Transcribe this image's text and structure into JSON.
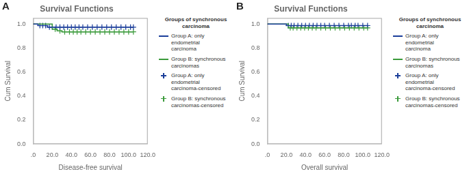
{
  "chart_data": [
    {
      "type": "line",
      "title": "Survival Functions",
      "annotations": [
        "A"
      ],
      "xlabel": "Disease-free survival",
      "ylabel": "Cum Survival",
      "xlim": [
        0,
        120
      ],
      "xticks": [
        {
          "value": 0,
          "label": ".0"
        },
        {
          "value": 20,
          "label": "20.0"
        },
        {
          "value": 40,
          "label": "40.0"
        },
        {
          "value": 60,
          "label": "60.0"
        },
        {
          "value": 80,
          "label": "80.0"
        },
        {
          "value": 100,
          "label": "100.0"
        },
        {
          "value": 120,
          "label": "120.0"
        }
      ],
      "ylim": [
        0.0,
        1.05
      ],
      "yticks": [
        {
          "value": 0.0,
          "label": "0.0"
        },
        0.2,
        0.4,
        0.6,
        0.8,
        {
          "value": 1.0,
          "label": "1.0"
        }
      ],
      "grid": false,
      "legend": "right",
      "legend_title": "Groups of synchronous\ncarcinoma",
      "series": [
        {
          "name": "Group A: only endometrial\ncarcinoma",
          "type": "line",
          "color": "#1A3D99",
          "x": [
            0,
            5,
            5,
            15,
            15,
            105
          ],
          "values": [
            1.0,
            1.0,
            0.987,
            0.987,
            0.974,
            0.974
          ]
        },
        {
          "name": "Group B: synchronous\ncarcinomas",
          "type": "line",
          "color": "#3A9A3A",
          "x": [
            0,
            20,
            20,
            25,
            25,
            30,
            30,
            105
          ],
          "values": [
            1.0,
            1.0,
            0.957,
            0.957,
            0.943,
            0.943,
            0.935,
            0.935
          ]
        },
        {
          "name": "Group A: only endometrial\ncarcinoma-censored",
          "type": "scatter",
          "marker": "+",
          "color": "#1A3D99",
          "x": [
            7,
            10,
            13,
            17,
            20,
            24,
            28,
            32,
            36,
            40,
            44,
            48,
            52,
            57,
            62,
            67,
            72,
            77,
            82,
            87,
            92,
            97,
            102,
            105
          ],
          "values": [
            0.987,
            0.987,
            0.987,
            0.974,
            0.974,
            0.974,
            0.974,
            0.974,
            0.974,
            0.974,
            0.974,
            0.974,
            0.974,
            0.974,
            0.974,
            0.974,
            0.974,
            0.974,
            0.974,
            0.974,
            0.974,
            0.974,
            0.974,
            0.974
          ]
        },
        {
          "name": "Group B: synchronous\ncarcinomas-censored",
          "type": "scatter",
          "marker": "+",
          "color": "#3A9A3A",
          "x": [
            23,
            28,
            33,
            38,
            42,
            46,
            50,
            55,
            60,
            65,
            70,
            75,
            80,
            85,
            90,
            95,
            100,
            105
          ],
          "values": [
            0.957,
            0.943,
            0.935,
            0.935,
            0.935,
            0.935,
            0.935,
            0.935,
            0.935,
            0.935,
            0.935,
            0.935,
            0.935,
            0.935,
            0.935,
            0.935,
            0.935,
            0.935
          ]
        }
      ]
    },
    {
      "type": "line",
      "title": "Survival Functions",
      "annotations": [
        "B"
      ],
      "xlabel": "Overall survival",
      "ylabel": "Cum Survival",
      "xlim": [
        0,
        120
      ],
      "xticks": [
        {
          "value": 0,
          "label": ".0"
        },
        {
          "value": 20,
          "label": "20.0"
        },
        {
          "value": 40,
          "label": "40.0"
        },
        {
          "value": 60,
          "label": "60.0"
        },
        {
          "value": 80,
          "label": "80.0"
        },
        {
          "value": 100,
          "label": "100.0"
        },
        {
          "value": 120,
          "label": "120.0"
        }
      ],
      "ylim": [
        0.0,
        1.05
      ],
      "yticks": [
        {
          "value": 0.0,
          "label": "0.0"
        },
        0.2,
        0.4,
        0.6,
        0.8,
        {
          "value": 1.0,
          "label": "1.0"
        }
      ],
      "grid": false,
      "legend": "right",
      "legend_title": "Groups of synchronous\ncarcinoma",
      "series": [
        {
          "name": "Group A: only endometrial\ncarcinoma",
          "type": "line",
          "color": "#1A3D99",
          "x": [
            0,
            20,
            20,
            105
          ],
          "values": [
            1.0,
            1.0,
            0.987,
            0.987
          ]
        },
        {
          "name": "Group B: synchronous\ncarcinomas",
          "type": "line",
          "color": "#3A9A3A",
          "x": [
            0,
            22,
            22,
            105
          ],
          "values": [
            1.0,
            1.0,
            0.968,
            0.968
          ]
        },
        {
          "name": "Group A: only endometrial\ncarcinoma-censored",
          "type": "scatter",
          "marker": "+",
          "color": "#1A3D99",
          "x": [
            22,
            25,
            28,
            32,
            36,
            40,
            44,
            48,
            52,
            56,
            60,
            65,
            70,
            75,
            80,
            85,
            88,
            92,
            95,
            100,
            105
          ],
          "values": [
            0.987,
            0.987,
            0.987,
            0.987,
            0.987,
            0.987,
            0.987,
            0.987,
            0.987,
            0.987,
            0.987,
            0.987,
            0.987,
            0.987,
            0.987,
            0.987,
            0.987,
            0.987,
            0.987,
            0.987,
            0.987
          ]
        },
        {
          "name": "Group B: synchronous\ncarcinomas-censored",
          "type": "scatter",
          "marker": "+",
          "color": "#3A9A3A",
          "x": [
            24,
            27,
            31,
            35,
            39,
            43,
            47,
            51,
            56,
            61,
            66,
            71,
            76,
            81,
            86,
            91,
            96,
            101,
            105
          ],
          "values": [
            0.968,
            0.968,
            0.968,
            0.968,
            0.968,
            0.968,
            0.968,
            0.968,
            0.968,
            0.968,
            0.968,
            0.968,
            0.968,
            0.968,
            0.968,
            0.968,
            0.968,
            0.968,
            0.968
          ]
        }
      ]
    }
  ]
}
